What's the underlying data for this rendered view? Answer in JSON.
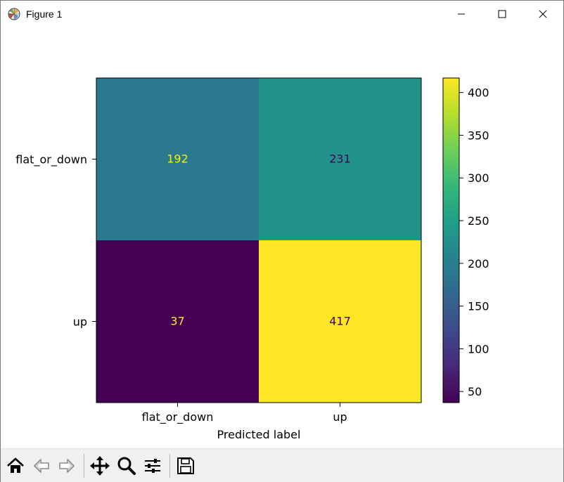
{
  "window": {
    "title": "Figure 1",
    "controls": [
      "minimize-icon",
      "maximize-icon",
      "close-icon"
    ]
  },
  "chart_data": {
    "type": "heatmap",
    "title": "",
    "xlabel": "Predicted label",
    "ylabel": "",
    "x_categories": [
      "flat_or_down",
      "up"
    ],
    "y_categories": [
      "flat_or_down",
      "up"
    ],
    "values": [
      [
        192,
        231
      ],
      [
        37,
        417
      ]
    ],
    "colormap": "viridis",
    "colorbar": {
      "min": 37,
      "max": 417,
      "ticks": [
        50,
        100,
        150,
        200,
        250,
        300,
        350,
        400
      ]
    },
    "grid": false
  },
  "toolbar": {
    "buttons": [
      {
        "icon": "home-icon",
        "name": "home"
      },
      {
        "icon": "back-arrow-icon",
        "name": "back"
      },
      {
        "icon": "forward-arrow-icon",
        "name": "forward"
      },
      {
        "icon": "pan-icon",
        "name": "pan"
      },
      {
        "icon": "zoom-icon",
        "name": "zoom"
      },
      {
        "icon": "subplots-config-icon",
        "name": "configure-subplots"
      },
      {
        "icon": "save-icon",
        "name": "save"
      }
    ]
  }
}
